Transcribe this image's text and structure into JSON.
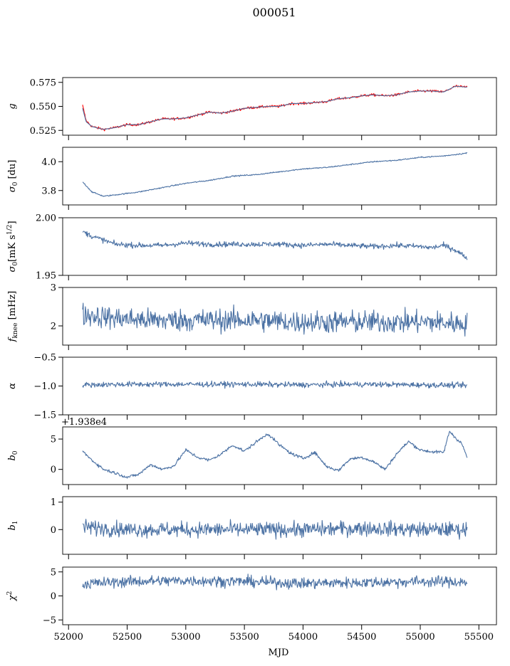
{
  "title": "000051",
  "colors": {
    "series": "#4c72a4",
    "fit": "#ff0000",
    "axis": "#000000"
  },
  "chart_data": [
    {
      "type": "line",
      "ylabel": "g",
      "ylim": [
        0.52,
        0.58
      ],
      "yticks": [
        0.525,
        0.55,
        0.575
      ],
      "ytick_labels": [
        "0.525",
        "0.550",
        "0.575"
      ],
      "xlim": [
        51950,
        55650
      ],
      "x": [
        52120,
        52150,
        52200,
        52300,
        52400,
        52500,
        52600,
        52700,
        52800,
        52900,
        53000,
        53100,
        53200,
        53300,
        53400,
        53500,
        53600,
        53700,
        53800,
        53900,
        54000,
        54100,
        54200,
        54300,
        54400,
        54500,
        54600,
        54700,
        54800,
        54900,
        55000,
        55100,
        55200,
        55300,
        55400
      ],
      "series": [
        {
          "values": [
            0.551,
            0.535,
            0.529,
            0.526,
            0.528,
            0.531,
            0.531,
            0.534,
            0.537,
            0.537,
            0.538,
            0.541,
            0.544,
            0.543,
            0.545,
            0.548,
            0.549,
            0.55,
            0.55,
            0.553,
            0.553,
            0.554,
            0.555,
            0.558,
            0.559,
            0.561,
            0.562,
            0.561,
            0.562,
            0.565,
            0.566,
            0.566,
            0.565,
            0.571,
            0.57
          ],
          "color_key": "fit",
          "noise": 0.0012
        },
        {
          "values": [
            0.548,
            0.534,
            0.529,
            0.526,
            0.528,
            0.531,
            0.531,
            0.534,
            0.537,
            0.537,
            0.538,
            0.541,
            0.544,
            0.543,
            0.545,
            0.548,
            0.549,
            0.55,
            0.55,
            0.553,
            0.553,
            0.554,
            0.555,
            0.558,
            0.559,
            0.561,
            0.562,
            0.561,
            0.562,
            0.565,
            0.566,
            0.566,
            0.565,
            0.571,
            0.57
          ],
          "color_key": "series",
          "noise": 0.0
        }
      ]
    },
    {
      "type": "line",
      "ylabel": "σ0 [du]",
      "ylim": [
        3.7,
        4.1
      ],
      "yticks": [
        3.8,
        4.0
      ],
      "ytick_labels": [
        "3.8",
        "4.0"
      ],
      "xlim": [
        51950,
        55650
      ],
      "x": [
        52120,
        52200,
        52300,
        52400,
        52600,
        52800,
        53000,
        53200,
        53400,
        53600,
        53800,
        54000,
        54200,
        54400,
        54600,
        54800,
        55000,
        55200,
        55400
      ],
      "series": [
        {
          "values": [
            3.86,
            3.79,
            3.76,
            3.77,
            3.79,
            3.82,
            3.85,
            3.87,
            3.9,
            3.91,
            3.93,
            3.95,
            3.96,
            3.98,
            4.0,
            4.01,
            4.03,
            4.04,
            4.06
          ],
          "color_key": "series",
          "noise": 0.004
        }
      ]
    },
    {
      "type": "line",
      "ylabel": "σ0[mK s^1/2]",
      "ylim": [
        1.95,
        2.0
      ],
      "yticks": [
        1.95,
        2.0
      ],
      "ytick_labels": [
        "1.95",
        "2.00"
      ],
      "xlim": [
        51950,
        55650
      ],
      "x": [
        52120,
        52200,
        52400,
        52600,
        52800,
        53000,
        53200,
        53400,
        53600,
        53800,
        54000,
        54200,
        54400,
        54600,
        54800,
        55000,
        55100,
        55200,
        55300,
        55400
      ],
      "series": [
        {
          "values": [
            1.988,
            1.984,
            1.977,
            1.976,
            1.976,
            1.978,
            1.977,
            1.977,
            1.977,
            1.977,
            1.976,
            1.977,
            1.976,
            1.975,
            1.976,
            1.975,
            1.974,
            1.976,
            1.972,
            1.965
          ],
          "color_key": "series",
          "noise": 0.0022
        }
      ]
    },
    {
      "type": "line",
      "ylabel": "fknee [mHz]",
      "ylim": [
        1.5,
        3.0
      ],
      "yticks": [
        2,
        3
      ],
      "ytick_labels": [
        "2",
        "3"
      ],
      "xlim": [
        51950,
        55650
      ],
      "x": [
        52120,
        52400,
        52700,
        53000,
        53300,
        53600,
        53900,
        54200,
        54500,
        54800,
        55100,
        55400
      ],
      "series": [
        {
          "values": [
            2.3,
            2.2,
            2.15,
            2.15,
            2.15,
            2.15,
            2.1,
            2.1,
            2.1,
            2.1,
            2.1,
            2.05
          ],
          "color_key": "series",
          "noise": 0.28
        }
      ]
    },
    {
      "type": "line",
      "ylabel": "α",
      "ylim": [
        -1.5,
        -0.5
      ],
      "yticks": [
        -1.5,
        -1.0,
        -0.5
      ],
      "ytick_labels": [
        "−1.5",
        "−1.0",
        "−0.5"
      ],
      "xlim": [
        51950,
        55650
      ],
      "x": [
        52120,
        52500,
        53000,
        53500,
        54000,
        54500,
        55000,
        55400
      ],
      "series": [
        {
          "values": [
            -0.98,
            -0.97,
            -0.97,
            -0.97,
            -0.98,
            -0.97,
            -0.98,
            -0.99
          ],
          "color_key": "series",
          "noise": 0.045
        }
      ]
    },
    {
      "type": "line",
      "ylabel": "b0",
      "offset_text": "+1.938e4",
      "ylim": [
        -2.5,
        7.0
      ],
      "yticks": [
        0,
        5
      ],
      "ytick_labels": [
        "0",
        "5"
      ],
      "xlim": [
        51950,
        55650
      ],
      "x": [
        52120,
        52200,
        52300,
        52400,
        52500,
        52600,
        52700,
        52800,
        52900,
        53000,
        53100,
        53200,
        53300,
        53400,
        53500,
        53600,
        53700,
        53800,
        53900,
        54000,
        54100,
        54200,
        54300,
        54400,
        54500,
        54600,
        54700,
        54800,
        54900,
        55000,
        55100,
        55200,
        55250,
        55300,
        55350,
        55400
      ],
      "series": [
        {
          "values": [
            3.0,
            1.5,
            0.0,
            -0.6,
            -1.3,
            -0.8,
            0.8,
            0.0,
            0.6,
            3.2,
            2.0,
            1.5,
            2.5,
            4.0,
            3.0,
            4.5,
            5.9,
            4.0,
            2.6,
            1.8,
            2.8,
            0.5,
            -0.2,
            1.7,
            2.0,
            1.3,
            0.0,
            2.6,
            4.6,
            3.2,
            2.9,
            2.8,
            6.3,
            5.2,
            4.4,
            2.0
          ],
          "color_key": "series",
          "noise": 0.25
        }
      ]
    },
    {
      "type": "line",
      "ylabel": "b1",
      "ylim": [
        -0.9,
        1.2
      ],
      "yticks": [
        0,
        1
      ],
      "ytick_labels": [
        "0",
        "1"
      ],
      "xlim": [
        51950,
        55650
      ],
      "x": [
        52120,
        52500,
        53000,
        53500,
        54000,
        54500,
        55000,
        55400
      ],
      "series": [
        {
          "values": [
            0.1,
            0.0,
            0.0,
            0.0,
            0.0,
            0.05,
            0.0,
            0.0
          ],
          "color_key": "series",
          "noise": 0.26
        }
      ]
    },
    {
      "type": "line",
      "ylabel": "χ2",
      "xlabel": "MJD",
      "ylim": [
        -6,
        6
      ],
      "yticks": [
        -5,
        0,
        5
      ],
      "ytick_labels": [
        "−5",
        "0",
        "5"
      ],
      "xlim": [
        51950,
        55650
      ],
      "xticks": [
        52000,
        52500,
        53000,
        53500,
        54000,
        54500,
        55000,
        55500
      ],
      "xtick_labels": [
        "52000",
        "52500",
        "53000",
        "53500",
        "54000",
        "54500",
        "55000",
        "55500"
      ],
      "x": [
        52120,
        52500,
        53000,
        53500,
        54000,
        54500,
        55000,
        55400
      ],
      "series": [
        {
          "values": [
            2.5,
            3.0,
            3.2,
            3.0,
            2.6,
            2.8,
            3.0,
            2.9
          ],
          "color_key": "series",
          "noise": 1.1
        }
      ]
    }
  ]
}
